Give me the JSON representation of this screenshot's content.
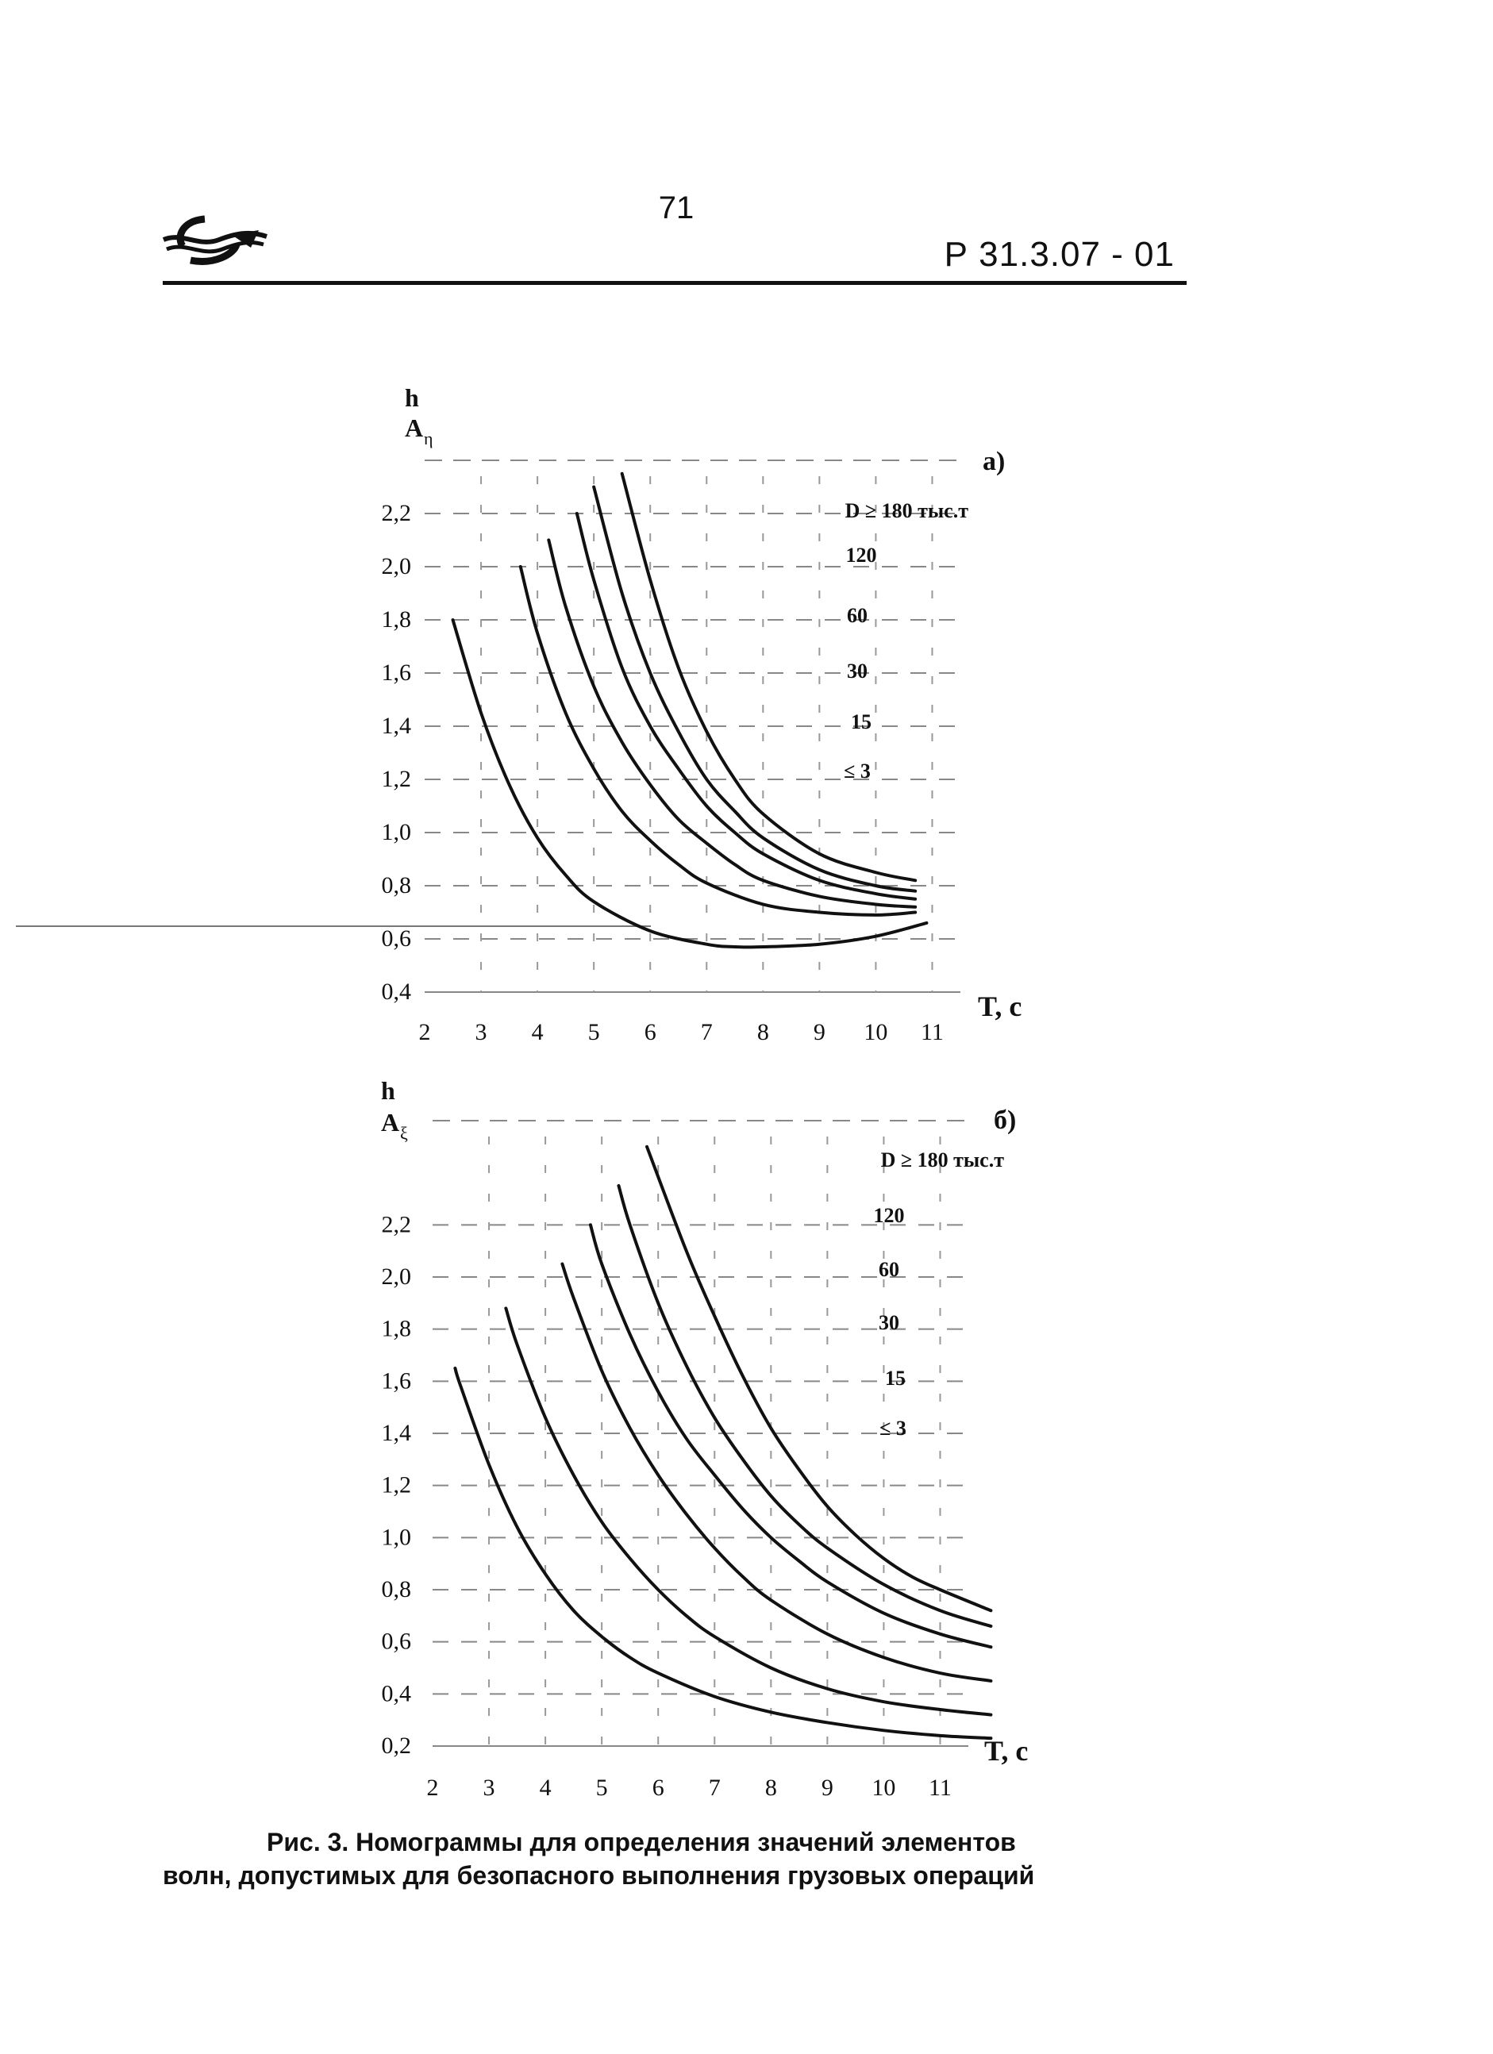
{
  "header": {
    "page_number": "71",
    "doc_code": "Р  31.3.07 - 01",
    "logo_icon": "wave-emblem-icon"
  },
  "caption": {
    "line1": "Рис. 3. Номограммы для определения значений элементов",
    "line2": "волн, допустимых для безопасного выполнения грузовых  операций"
  },
  "chart_data": [
    {
      "type": "line",
      "panel_label": "а)",
      "ylabel_line1": "h",
      "ylabel_line2": "A",
      "ylabel_sub": "η",
      "xlabel": "T, с",
      "x_ticks": [
        "2",
        "3",
        "4",
        "5",
        "6",
        "7",
        "8",
        "9",
        "10",
        "11"
      ],
      "y_ticks": [
        "0,4",
        "0,6",
        "0,8",
        "1,0",
        "1,2",
        "1,4",
        "1,6",
        "1,8",
        "2,0",
        "2,2"
      ],
      "xlim": [
        2,
        11.5
      ],
      "ylim": [
        0.4,
        2.4
      ],
      "grid": true,
      "series_labels": [
        "D ≥ 180 тыс.т",
        "120",
        "60",
        "30",
        "15",
        "≤ 3"
      ],
      "series": [
        {
          "name": "D ≥ 180 тыс.т",
          "x": [
            5.5,
            6.0,
            6.5,
            7.0,
            7.5,
            8.0,
            9.0,
            10.0,
            10.7
          ],
          "y": [
            2.35,
            1.95,
            1.62,
            1.38,
            1.2,
            1.07,
            0.92,
            0.85,
            0.82
          ]
        },
        {
          "name": "120",
          "x": [
            5.0,
            5.5,
            6.0,
            6.5,
            7.0,
            7.5,
            8.0,
            9.0,
            10.0,
            10.7
          ],
          "y": [
            2.3,
            1.9,
            1.6,
            1.38,
            1.2,
            1.08,
            0.98,
            0.86,
            0.8,
            0.78
          ]
        },
        {
          "name": "60",
          "x": [
            4.7,
            5.0,
            5.5,
            6.0,
            6.5,
            7.0,
            7.5,
            8.0,
            9.0,
            10.0,
            10.7
          ],
          "y": [
            2.2,
            1.95,
            1.62,
            1.4,
            1.24,
            1.1,
            1.0,
            0.92,
            0.82,
            0.77,
            0.75
          ]
        },
        {
          "name": "30",
          "x": [
            4.2,
            4.5,
            5.0,
            5.5,
            6.0,
            6.5,
            7.0,
            7.5,
            8.0,
            9.0,
            10.0,
            10.7
          ],
          "y": [
            2.1,
            1.85,
            1.55,
            1.34,
            1.18,
            1.05,
            0.96,
            0.88,
            0.82,
            0.76,
            0.73,
            0.72
          ]
        },
        {
          "name": "15",
          "x": [
            3.7,
            4.0,
            4.5,
            5.0,
            5.5,
            6.0,
            6.5,
            7.0,
            8.0,
            9.0,
            10.0,
            10.7
          ],
          "y": [
            2.0,
            1.75,
            1.45,
            1.24,
            1.08,
            0.97,
            0.88,
            0.81,
            0.73,
            0.7,
            0.69,
            0.7
          ]
        },
        {
          "name": "≤ 3",
          "x": [
            2.5,
            3.0,
            3.5,
            4.0,
            4.5,
            5.0,
            6.0,
            7.0,
            7.5,
            8.0,
            9.0,
            10.0,
            10.9
          ],
          "y": [
            1.8,
            1.45,
            1.18,
            0.98,
            0.84,
            0.74,
            0.63,
            0.58,
            0.57,
            0.57,
            0.58,
            0.61,
            0.66
          ]
        }
      ]
    },
    {
      "type": "line",
      "panel_label": "б)",
      "ylabel_line1": "h",
      "ylabel_line2": "A",
      "ylabel_sub": "ξ",
      "xlabel": "T, с",
      "x_ticks": [
        "2",
        "3",
        "4",
        "5",
        "6",
        "7",
        "8",
        "9",
        "10",
        "11"
      ],
      "y_ticks": [
        "0,2",
        "0,4",
        "0,6",
        "0,8",
        "1,0",
        "1,2",
        "1,4",
        "1,6",
        "1,8",
        "2,0",
        "2,2"
      ],
      "xlim": [
        2,
        11.5
      ],
      "ylim": [
        0.2,
        2.6
      ],
      "grid": true,
      "series_labels": [
        "D ≥ 180 тыс.т",
        "120",
        "60",
        "30",
        "15",
        "≤ 3"
      ],
      "series": [
        {
          "name": "D ≥ 180 тыс.т",
          "x": [
            5.8,
            6.5,
            7.0,
            7.5,
            8.0,
            8.5,
            9.0,
            9.5,
            10.0,
            10.5,
            11.0,
            11.9
          ],
          "y": [
            2.5,
            2.1,
            1.85,
            1.62,
            1.42,
            1.26,
            1.12,
            1.01,
            0.92,
            0.85,
            0.8,
            0.72
          ]
        },
        {
          "name": "120",
          "x": [
            5.3,
            5.5,
            6.0,
            6.5,
            7.0,
            7.5,
            8.0,
            8.5,
            9.0,
            10.0,
            11.0,
            11.9
          ],
          "y": [
            2.35,
            2.2,
            1.9,
            1.66,
            1.46,
            1.3,
            1.16,
            1.05,
            0.96,
            0.82,
            0.72,
            0.66
          ]
        },
        {
          "name": "60",
          "x": [
            4.8,
            5.0,
            5.5,
            6.0,
            6.5,
            7.0,
            7.5,
            8.0,
            8.5,
            9.0,
            10.0,
            11.0,
            11.9
          ],
          "y": [
            2.2,
            2.05,
            1.78,
            1.56,
            1.38,
            1.24,
            1.11,
            1.0,
            0.91,
            0.83,
            0.71,
            0.63,
            0.58
          ]
        },
        {
          "name": "30",
          "x": [
            4.3,
            4.5,
            5.0,
            5.5,
            6.0,
            6.5,
            7.0,
            7.5,
            8.0,
            9.0,
            10.0,
            11.0,
            11.9
          ],
          "y": [
            2.05,
            1.92,
            1.64,
            1.42,
            1.24,
            1.09,
            0.96,
            0.85,
            0.76,
            0.63,
            0.54,
            0.48,
            0.45
          ]
        },
        {
          "name": "15",
          "x": [
            3.3,
            3.5,
            4.0,
            4.5,
            5.0,
            5.5,
            6.0,
            6.5,
            7.0,
            8.0,
            9.0,
            10.0,
            11.0,
            11.9
          ],
          "y": [
            1.88,
            1.74,
            1.46,
            1.24,
            1.06,
            0.92,
            0.8,
            0.7,
            0.62,
            0.5,
            0.42,
            0.37,
            0.34,
            0.32
          ]
        },
        {
          "name": "≤ 3",
          "x": [
            2.4,
            2.5,
            3.0,
            3.5,
            4.0,
            4.5,
            5.0,
            5.5,
            6.0,
            7.0,
            8.0,
            9.0,
            10.0,
            11.0,
            11.9
          ],
          "y": [
            1.65,
            1.58,
            1.28,
            1.04,
            0.86,
            0.72,
            0.62,
            0.54,
            0.48,
            0.39,
            0.33,
            0.29,
            0.26,
            0.24,
            0.23
          ]
        }
      ]
    }
  ]
}
